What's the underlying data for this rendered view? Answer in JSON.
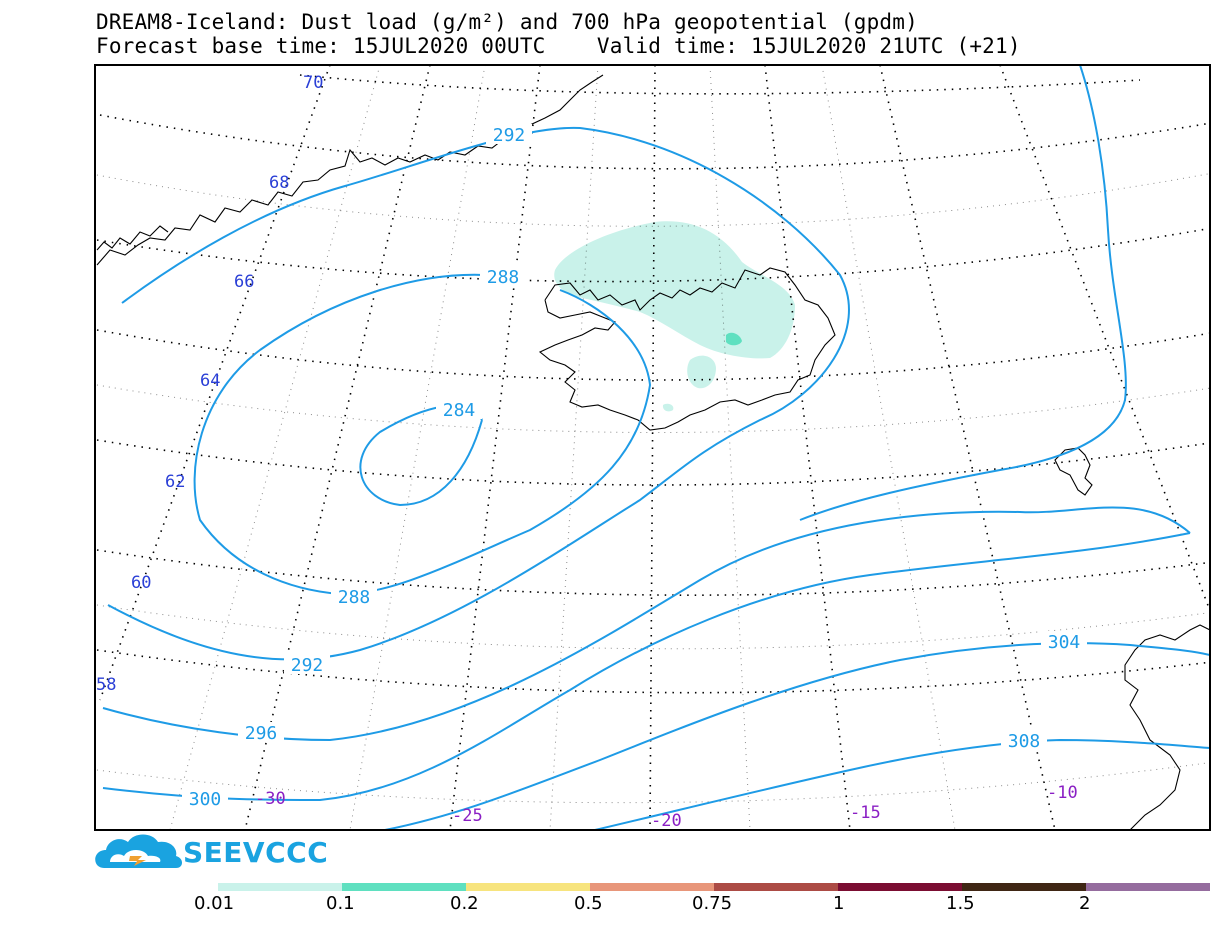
{
  "header": {
    "line1": "DREAM8-Iceland: Dust load (g/m²) and 700 hPa geopotential (gpdm)",
    "line2": "Forecast base time: 15JUL2020 00UTC    Valid time: 15JUL2020 21UTC (+21)"
  },
  "latitude_labels": [
    "70",
    "68",
    "66",
    "64",
    "62",
    "60",
    "58"
  ],
  "longitude_labels": [
    "-30",
    "-25",
    "-20",
    "-15",
    "-10"
  ],
  "contour_labels": [
    "292",
    "288",
    "284",
    "288",
    "292",
    "296",
    "300",
    "304",
    "308"
  ],
  "logo": {
    "text": "SEEVCCC"
  },
  "colorbar": {
    "labels": [
      "0.01",
      "0.1",
      "0.2",
      "0.5",
      "0.75",
      "1",
      "1.5",
      "2"
    ],
    "colors": [
      "#c9f2ea",
      "#5fe0c0",
      "#f7e47e",
      "#e8967a",
      "#ac4b45",
      "#7b0d32",
      "#3f2614",
      "#956c9e"
    ]
  },
  "colors": {
    "contour": "#1e9be6",
    "lat_label": "#2a3fd6",
    "lon_label": "#8a1fc4",
    "dust_light": "#c9f2ea",
    "dust_mid": "#5fe0c0"
  }
}
